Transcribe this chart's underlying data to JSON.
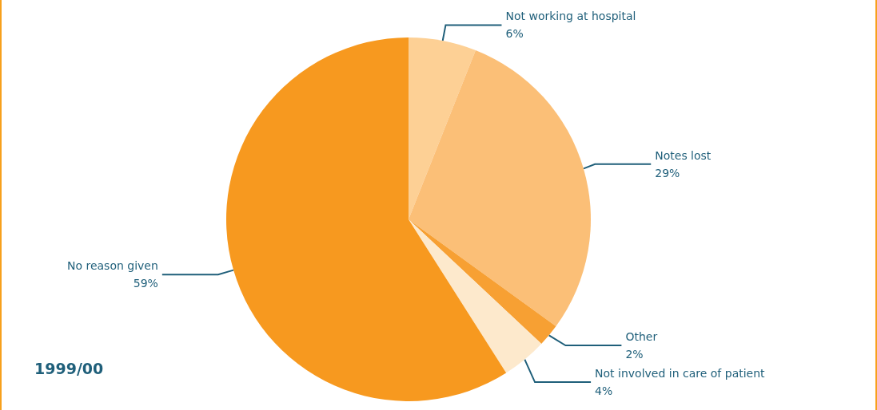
{
  "chart_data": {
    "type": "pie",
    "title": "1999/00",
    "categories": [
      "Not working at hospital",
      "Notes lost",
      "Other",
      "Not involved in care of patient",
      "No reason given"
    ],
    "values": [
      6,
      29,
      2,
      4,
      59
    ],
    "value_labels": [
      "6%",
      "29%",
      "2%",
      "4%",
      "59%"
    ],
    "colors": [
      "#fdd095",
      "#fbbf77",
      "#f7a033",
      "#fde9cc",
      "#f7991f"
    ],
    "legend": false
  }
}
